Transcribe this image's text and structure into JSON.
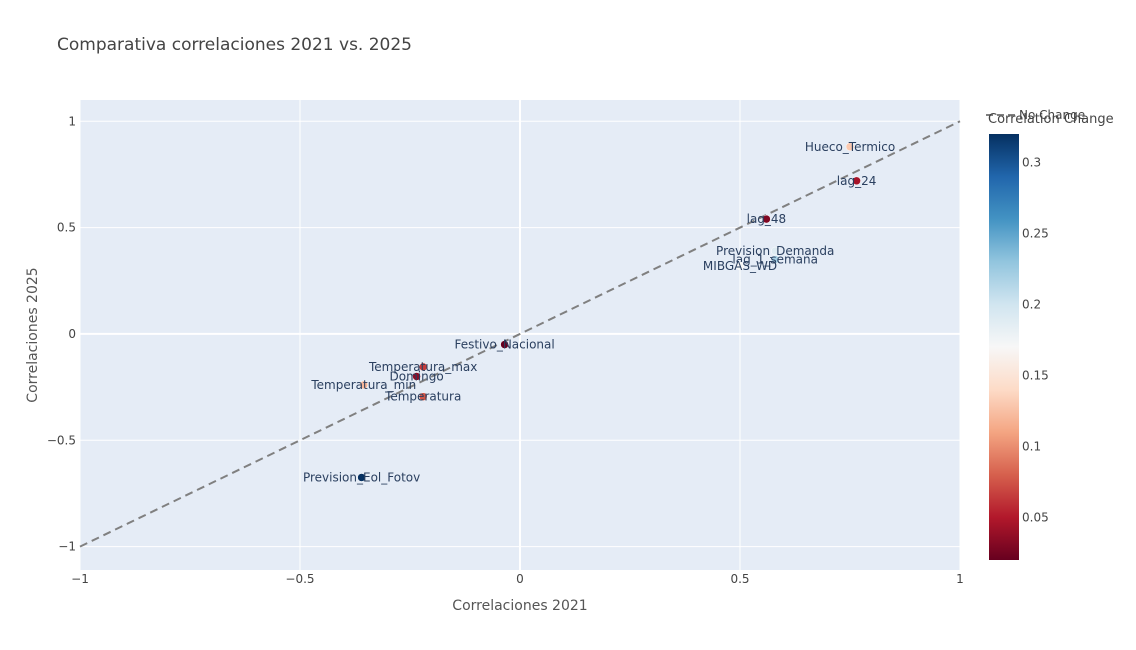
{
  "chart_data": {
    "type": "scatter",
    "title": "Comparativa correlaciones 2021 vs. 2025",
    "xlabel": "Correlaciones 2021",
    "ylabel": "Correlaciones 2025",
    "xlim": [
      -1,
      1
    ],
    "ylim": [
      -1.11,
      1.1
    ],
    "xticks": [
      -1,
      -0.5,
      0,
      0.5,
      1
    ],
    "xtick_labels": [
      "−1",
      "−0.5",
      "0",
      "0.5",
      "1"
    ],
    "yticks": [
      -1,
      -0.5,
      0,
      0.5,
      1
    ],
    "ytick_labels": [
      "−1",
      "−0.5",
      "0",
      "0.5",
      "1"
    ],
    "grid": true,
    "reference_line": {
      "name": "No Change",
      "x": [
        -1,
        1
      ],
      "y": [
        -1,
        1
      ],
      "color": "#808080",
      "dash": true
    },
    "colorbar": {
      "title": "Correlation Change",
      "range": [
        0.02,
        0.32
      ],
      "ticks": [
        0.05,
        0.1,
        0.15,
        0.2,
        0.25,
        0.3
      ],
      "tick_labels": [
        "0.05",
        "0.1",
        "0.15",
        "0.2",
        "0.25",
        "0.3"
      ],
      "colorscale": [
        "#67001f",
        "#b2182b",
        "#d6604d",
        "#f4a582",
        "#fddbc7",
        "#f7f7f7",
        "#d1e5f0",
        "#92c5de",
        "#4393c3",
        "#2166ac",
        "#053061"
      ]
    },
    "points": [
      {
        "label": "Hueco_Termico",
        "x": 0.75,
        "y": 0.88,
        "change": 0.13
      },
      {
        "label": "lag_24",
        "x": 0.765,
        "y": 0.72,
        "change": 0.045
      },
      {
        "label": "lag_48",
        "x": 0.56,
        "y": 0.54,
        "change": 0.03
      },
      {
        "label": "Prevision_Demanda",
        "x": 0.58,
        "y": 0.39,
        "change": 0.19
      },
      {
        "label": "lag_1_semana",
        "x": 0.58,
        "y": 0.35,
        "change": 0.22
      },
      {
        "label": "MIBGAS_WD",
        "x": 0.5,
        "y": 0.32,
        "change": 0.17
      },
      {
        "label": "Festivo_Nacional",
        "x": -0.035,
        "y": -0.05,
        "change": 0.02
      },
      {
        "label": "Temperatura_max",
        "x": -0.22,
        "y": -0.155,
        "change": 0.065
      },
      {
        "label": "Domingo",
        "x": -0.235,
        "y": -0.2,
        "change": 0.035
      },
      {
        "label": "Temperatura_min",
        "x": -0.355,
        "y": -0.24,
        "change": 0.12
      },
      {
        "label": "Temperatura",
        "x": -0.22,
        "y": -0.295,
        "change": 0.075
      },
      {
        "label": "Prevision_Eol_Fotov",
        "x": -0.36,
        "y": -0.675,
        "change": 0.32
      }
    ]
  }
}
